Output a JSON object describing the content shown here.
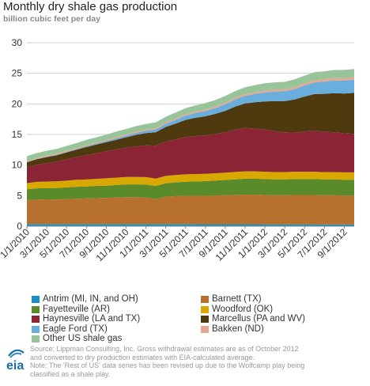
{
  "title": "Monthly dry shale gas production",
  "subtitle": "billion cubic feet per day",
  "colors": {
    "grid": "#d0d0d0",
    "axis": "#888888",
    "eia_blue": "#1a6fa8"
  },
  "logo_text": "eia",
  "source_lines": [
    "Source: Lippman Consulting, Inc. Gross withdrawal estimates are as of October 2012",
    "and converted to dry production estimates with EIA-calculated average.",
    "Note: The 'Rest of US' data series has been revised up due to the Wolfcamp play being",
    "classified as a shale play."
  ],
  "chart_data": {
    "type": "area",
    "stacked": true,
    "title": "Monthly dry shale gas production",
    "subtitle": "billion cubic feet per day",
    "ylim": [
      0,
      30
    ],
    "yticks": [
      0,
      5,
      10,
      15,
      20,
      25,
      30
    ],
    "grid": true,
    "legend_position": "bottom",
    "x": [
      "1/1/2010",
      "2/1/2010",
      "3/1/2010",
      "4/1/2010",
      "5/1/2010",
      "6/1/2010",
      "7/1/2010",
      "8/1/2010",
      "9/1/2010",
      "10/1/2010",
      "11/1/2010",
      "12/1/2010",
      "1/1/2011",
      "2/1/2011",
      "3/1/2011",
      "4/1/2011",
      "5/1/2011",
      "6/1/2011",
      "7/1/2011",
      "8/1/2011",
      "9/1/2011",
      "10/1/2011",
      "11/1/2011",
      "12/1/2011",
      "1/1/2012",
      "2/1/2012",
      "3/1/2012",
      "4/1/2012",
      "5/1/2012",
      "6/1/2012",
      "7/1/2012",
      "8/1/2012",
      "9/1/2012",
      "10/1/2012"
    ],
    "xtick_labels": [
      "1/1/2010",
      "3/1/2010",
      "5/1/2010",
      "7/1/2010",
      "9/1/2010",
      "11/1/2010",
      "1/1/2011",
      "3/1/2011",
      "5/1/2011",
      "7/1/2011",
      "9/1/2011",
      "11/1/2011",
      "1/1/2012",
      "3/1/2012",
      "5/1/2012",
      "7/1/2012",
      "9/1/2012"
    ],
    "series": [
      {
        "name": "Antrim (MI, IN, and OH)",
        "color": "#1a8fc0",
        "values": [
          0.35,
          0.35,
          0.35,
          0.35,
          0.35,
          0.35,
          0.34,
          0.34,
          0.34,
          0.34,
          0.34,
          0.34,
          0.33,
          0.33,
          0.33,
          0.33,
          0.33,
          0.33,
          0.32,
          0.32,
          0.32,
          0.32,
          0.32,
          0.32,
          0.31,
          0.31,
          0.31,
          0.31,
          0.31,
          0.31,
          0.3,
          0.3,
          0.3,
          0.3
        ]
      },
      {
        "name": "Barnett (TX)",
        "color": "#b8702f",
        "values": [
          3.9,
          4.0,
          4.05,
          4.0,
          4.1,
          4.15,
          4.2,
          4.25,
          4.3,
          4.35,
          4.4,
          4.4,
          4.35,
          4.1,
          4.5,
          4.6,
          4.65,
          4.65,
          4.65,
          4.7,
          4.75,
          4.8,
          4.85,
          4.85,
          4.8,
          4.75,
          4.75,
          4.8,
          4.8,
          4.8,
          4.75,
          4.75,
          4.7,
          4.7
        ]
      },
      {
        "name": "Fayetteville (AR)",
        "color": "#5a8a2a",
        "values": [
          1.8,
          1.85,
          1.85,
          1.9,
          1.9,
          1.95,
          1.95,
          2.0,
          2.0,
          2.05,
          2.1,
          2.1,
          2.15,
          2.15,
          2.2,
          2.25,
          2.3,
          2.35,
          2.4,
          2.45,
          2.5,
          2.55,
          2.6,
          2.6,
          2.6,
          2.6,
          2.6,
          2.6,
          2.6,
          2.6,
          2.6,
          2.6,
          2.6,
          2.6
        ]
      },
      {
        "name": "Woodford (OK)",
        "color": "#d9a800",
        "values": [
          1.0,
          1.05,
          1.05,
          1.1,
          1.1,
          1.15,
          1.15,
          1.15,
          1.2,
          1.2,
          1.2,
          1.2,
          1.2,
          1.2,
          1.2,
          1.2,
          1.2,
          1.2,
          1.2,
          1.2,
          1.2,
          1.2,
          1.2,
          1.2,
          1.2,
          1.2,
          1.2,
          1.2,
          1.2,
          1.2,
          1.2,
          1.2,
          1.2,
          1.2
        ]
      },
      {
        "name": "Haynesville (LA and TX)",
        "color": "#8b2535",
        "values": [
          2.6,
          2.8,
          3.0,
          3.2,
          3.5,
          3.7,
          4.0,
          4.2,
          4.4,
          4.6,
          4.8,
          5.0,
          5.2,
          5.4,
          5.6,
          5.8,
          6.1,
          6.2,
          6.3,
          6.4,
          6.6,
          6.9,
          7.1,
          7.0,
          6.9,
          6.7,
          6.5,
          6.4,
          6.6,
          6.7,
          6.6,
          6.5,
          6.4,
          6.3
        ]
      },
      {
        "name": "Marcellus (PA and WV)",
        "color": "#4f3a10",
        "values": [
          0.8,
          0.9,
          1.0,
          1.05,
          1.1,
          1.2,
          1.3,
          1.4,
          1.5,
          1.6,
          1.7,
          1.9,
          2.0,
          2.2,
          2.4,
          2.6,
          2.8,
          3.0,
          3.1,
          3.3,
          3.5,
          3.8,
          4.0,
          4.3,
          4.6,
          4.9,
          5.1,
          5.4,
          5.7,
          6.0,
          6.2,
          6.4,
          6.5,
          6.7
        ]
      },
      {
        "name": "Eagle Ford (TX)",
        "color": "#6aaedd",
        "values": [
          0.05,
          0.06,
          0.07,
          0.08,
          0.1,
          0.12,
          0.14,
          0.17,
          0.2,
          0.23,
          0.27,
          0.32,
          0.38,
          0.45,
          0.5,
          0.6,
          0.7,
          0.78,
          0.86,
          0.95,
          1.05,
          1.15,
          1.25,
          1.35,
          1.45,
          1.55,
          1.6,
          1.7,
          1.8,
          1.9,
          2.0,
          2.05,
          2.1,
          2.15
        ]
      },
      {
        "name": "Bakken (ND)",
        "color": "#e3a890",
        "values": [
          0.15,
          0.15,
          0.16,
          0.16,
          0.17,
          0.17,
          0.18,
          0.18,
          0.19,
          0.19,
          0.2,
          0.2,
          0.21,
          0.21,
          0.22,
          0.22,
          0.23,
          0.24,
          0.25,
          0.26,
          0.27,
          0.28,
          0.29,
          0.3,
          0.32,
          0.33,
          0.34,
          0.35,
          0.36,
          0.37,
          0.38,
          0.39,
          0.4,
          0.4
        ]
      },
      {
        "name": "Other US shale gas",
        "color": "#98c49a",
        "values": [
          0.8,
          0.8,
          0.8,
          0.8,
          0.8,
          0.8,
          0.85,
          0.85,
          0.85,
          0.9,
          0.9,
          0.9,
          0.9,
          0.95,
          0.95,
          1.0,
          1.0,
          1.0,
          1.05,
          1.05,
          1.1,
          1.1,
          1.1,
          1.15,
          1.2,
          1.2,
          1.2,
          1.25,
          1.25,
          1.3,
          1.3,
          1.35,
          1.35,
          1.35
        ]
      }
    ]
  }
}
